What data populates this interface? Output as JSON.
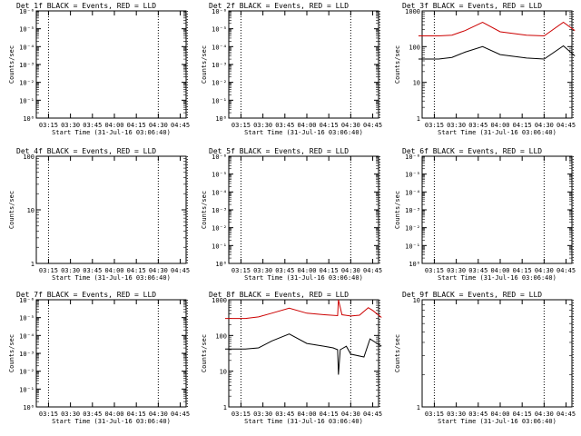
{
  "chart_data": [
    {
      "type": "line",
      "title": "Det 1f BLACK = Events, RED = LLD",
      "xlabel": "Start Time (31-Jul-16 03:06:40)",
      "ylabel": "Counts/sec",
      "scale": "log",
      "yticks": [
        "10⁰",
        "10⁻¹",
        "10⁻²",
        "10⁻³",
        "10⁻⁴",
        "10⁻⁵",
        "10⁻⁶"
      ],
      "xticks": [
        "03:15",
        "03:30",
        "03:45",
        "04:00",
        "04:15",
        "04:30",
        "04:45"
      ],
      "series": []
    },
    {
      "type": "line",
      "title": "Det 2f BLACK = Events, RED = LLD",
      "xlabel": "Start Time (31-Jul-16 03:06:40)",
      "ylabel": "Counts/sec",
      "scale": "log",
      "yticks": [
        "10⁰",
        "10⁻¹",
        "10⁻²",
        "10⁻³",
        "10⁻⁴",
        "10⁻⁵",
        "10⁻⁶"
      ],
      "xticks": [
        "03:15",
        "03:30",
        "03:45",
        "04:00",
        "04:15",
        "04:30",
        "04:45"
      ],
      "series": []
    },
    {
      "type": "line",
      "title": "Det 3f BLACK = Events, RED = LLD",
      "xlabel": "Start Time (31-Jul-16 03:06:40)",
      "ylabel": "Counts/sec",
      "scale": "log",
      "yticks": [
        "1",
        "10",
        "100",
        "1000"
      ],
      "xticks": [
        "03:15",
        "03:30",
        "03:45",
        "04:00",
        "04:15",
        "04:30",
        "04:45"
      ],
      "series": [
        {
          "color": "#cc0000",
          "x": [
            3.07,
            3.3,
            3.45,
            3.6,
            3.8,
            4.0,
            4.3,
            4.5,
            4.72,
            4.85
          ],
          "y": [
            200,
            200,
            210,
            280,
            480,
            260,
            210,
            200,
            480,
            280
          ]
        },
        {
          "color": "#000000",
          "x": [
            3.07,
            3.3,
            3.45,
            3.6,
            3.8,
            4.0,
            4.3,
            4.5,
            4.72,
            4.85
          ],
          "y": [
            45,
            45,
            50,
            70,
            100,
            60,
            48,
            45,
            105,
            55
          ]
        }
      ]
    },
    {
      "type": "line",
      "title": "Det 4f BLACK = Events, RED = LLD",
      "xlabel": "Start Time (31-Jul-16 03:06:40)",
      "ylabel": "Counts/sec",
      "scale": "log",
      "yticks": [
        "1",
        "10",
        "100"
      ],
      "xticks": [
        "03:15",
        "03:30",
        "03:45",
        "04:00",
        "04:15",
        "04:30",
        "04:45"
      ],
      "series": []
    },
    {
      "type": "line",
      "title": "Det 5f BLACK = Events, RED = LLD",
      "xlabel": "Start Time (31-Jul-16 03:06:40)",
      "ylabel": "Counts/sec",
      "scale": "log",
      "yticks": [
        "10⁰",
        "10⁻¹",
        "10⁻²",
        "10⁻³",
        "10⁻⁴",
        "10⁻⁵",
        "10⁻⁶"
      ],
      "xticks": [
        "03:15",
        "03:30",
        "03:45",
        "04:00",
        "04:15",
        "04:30",
        "04:45"
      ],
      "series": []
    },
    {
      "type": "line",
      "title": "Det 6f BLACK = Events, RED = LLD",
      "xlabel": "Start Time (31-Jul-16 03:06:40)",
      "ylabel": "Counts/sec",
      "scale": "log",
      "yticks": [
        "10⁰",
        "10⁻¹",
        "10⁻²",
        "10⁻³",
        "10⁻⁴",
        "10⁻⁵",
        "10⁻⁶"
      ],
      "xticks": [
        "03:15",
        "03:30",
        "03:45",
        "04:00",
        "04:15",
        "04:30",
        "04:45"
      ],
      "series": []
    },
    {
      "type": "line",
      "title": "Det 7f BLACK = Events, RED = LLD",
      "xlabel": "Start Time (31-Jul-16 03:06:40)",
      "ylabel": "Counts/sec",
      "scale": "log",
      "yticks": [
        "10⁰",
        "10⁻¹",
        "10⁻²",
        "10⁻³",
        "10⁻⁴",
        "10⁻⁵",
        "10⁻⁶"
      ],
      "xticks": [
        "03:15",
        "03:30",
        "03:45",
        "04:00",
        "04:15",
        "04:30",
        "04:45"
      ],
      "series": []
    },
    {
      "type": "line",
      "title": "Det 8f BLACK = Events, RED = LLD",
      "xlabel": "Start Time (31-Jul-16 03:06:40)",
      "ylabel": "Counts/sec",
      "scale": "log",
      "yticks": [
        "1",
        "10",
        "100",
        "1000"
      ],
      "xticks": [
        "03:15",
        "03:30",
        "03:45",
        "04:00",
        "04:15",
        "04:30",
        "04:45"
      ],
      "series": [
        {
          "color": "#cc0000",
          "x": [
            3.07,
            3.3,
            3.45,
            3.6,
            3.8,
            4.0,
            4.2,
            4.35,
            4.36,
            4.4,
            4.5,
            4.6,
            4.7,
            4.75,
            4.85
          ],
          "y": [
            300,
            300,
            330,
            420,
            580,
            420,
            380,
            360,
            1000,
            380,
            350,
            370,
            600,
            500,
            320
          ]
        },
        {
          "color": "#000000",
          "x": [
            3.07,
            3.3,
            3.45,
            3.6,
            3.8,
            4.0,
            4.2,
            4.3,
            4.35,
            4.36,
            4.38,
            4.45,
            4.5,
            4.65,
            4.72,
            4.85
          ],
          "y": [
            42,
            42,
            45,
            70,
            110,
            60,
            50,
            45,
            40,
            8,
            40,
            50,
            30,
            25,
            80,
            50
          ]
        }
      ]
    },
    {
      "type": "line",
      "title": "Det 9f BLACK = Events, RED = LLD",
      "xlabel": "Start Time (31-Jul-16 03:06:40)",
      "ylabel": "Counts/sec",
      "scale": "log",
      "yticks": [
        "1",
        "10"
      ],
      "xticks": [
        "03:15",
        "03:30",
        "03:45",
        "04:00",
        "04:15",
        "04:30",
        "04:45"
      ],
      "series": []
    }
  ]
}
